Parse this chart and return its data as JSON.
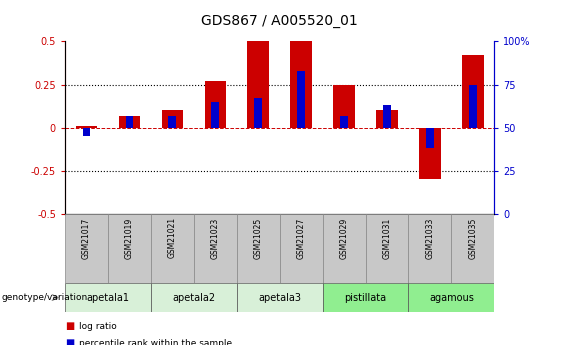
{
  "title": "GDS867 / A005520_01",
  "samples": [
    "GSM21017",
    "GSM21019",
    "GSM21021",
    "GSM21023",
    "GSM21025",
    "GSM21027",
    "GSM21029",
    "GSM21031",
    "GSM21033",
    "GSM21035"
  ],
  "log_ratio": [
    0.01,
    0.07,
    0.1,
    0.27,
    0.5,
    0.5,
    0.25,
    0.1,
    -0.3,
    0.42
  ],
  "percentile_rank": [
    45,
    57,
    57,
    65,
    67,
    83,
    57,
    63,
    38,
    75
  ],
  "ylim": [
    -0.5,
    0.5
  ],
  "yticks": [
    -0.5,
    -0.25,
    0.0,
    0.25,
    0.5
  ],
  "y2ticks": [
    0,
    25,
    50,
    75,
    100
  ],
  "bar_color_red": "#cc0000",
  "bar_color_blue": "#0000cc",
  "genotype_groups": [
    {
      "label": "apetala1",
      "start": 0,
      "end": 1,
      "color": "#d8f0d8"
    },
    {
      "label": "apetala2",
      "start": 2,
      "end": 3,
      "color": "#d8f0d8"
    },
    {
      "label": "apetala3",
      "start": 4,
      "end": 5,
      "color": "#d8f0d8"
    },
    {
      "label": "pistillata",
      "start": 6,
      "end": 7,
      "color": "#90ee90"
    },
    {
      "label": "agamous",
      "start": 8,
      "end": 9,
      "color": "#90ee90"
    }
  ],
  "legend_log_ratio": "log ratio",
  "legend_percentile": "percentile rank within the sample",
  "genotype_label": "genotype/variation",
  "bg_color": "#ffffff",
  "tick_label_color_left": "#cc0000",
  "tick_label_color_right": "#0000cc",
  "title_fontsize": 10,
  "tick_fontsize": 7,
  "sample_box_color": "#c8c8c8"
}
